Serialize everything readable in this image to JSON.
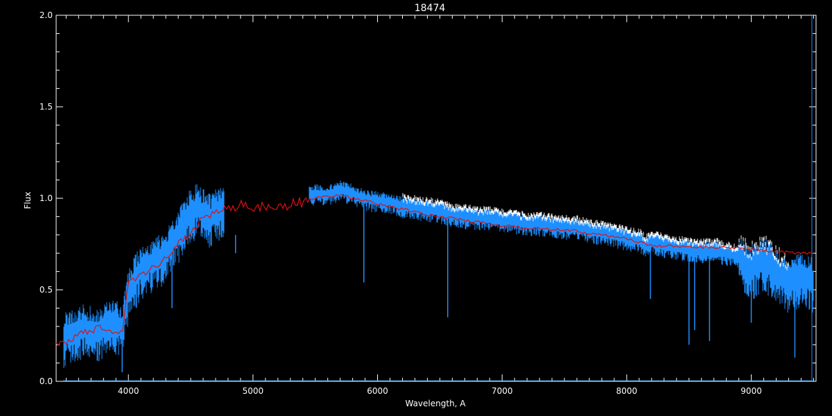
{
  "chart_data": {
    "type": "line",
    "title": "18474",
    "xlabel": "Wavelength, A",
    "ylabel": "Flux",
    "xlim": [
      3420,
      9520
    ],
    "ylim": [
      0.0,
      2.0
    ],
    "x_ticks": [
      4000,
      5000,
      6000,
      7000,
      8000,
      9000
    ],
    "x_tick_labels": [
      "4000",
      "5000",
      "6000",
      "7000",
      "8000",
      "9000"
    ],
    "y_ticks": [
      0.0,
      0.5,
      1.0,
      1.5,
      2.0
    ],
    "y_tick_labels": [
      "0.0",
      "0.5",
      "1.0",
      "1.5",
      "2.0"
    ],
    "grid": false,
    "legend": "none",
    "colors": {
      "background": "#000000",
      "axes": "#ffffff",
      "observed": "#1e8fff",
      "observed_upper": "#ffffff",
      "model": "#dd1111"
    },
    "series": [
      {
        "key": "observed",
        "x": [
          3480,
          3550,
          3650,
          3750,
          3850,
          3950,
          4000,
          4100,
          4200,
          4300,
          4400,
          4500,
          4550,
          4650,
          4750,
          4770
        ],
        "y": [
          0.25,
          0.28,
          0.3,
          0.27,
          0.33,
          0.3,
          0.5,
          0.62,
          0.66,
          0.7,
          0.82,
          0.93,
          0.96,
          0.9,
          0.95,
          0.95
        ]
      },
      {
        "key": "observed",
        "x": [
          5450,
          5500,
          5600,
          5700,
          5800,
          5900,
          6000,
          6100,
          6200,
          6300,
          6400,
          6500,
          6600,
          6700,
          6800,
          6900,
          7000,
          7100,
          7200,
          7300,
          7400,
          7500,
          7600,
          7700,
          7800,
          7900,
          8000,
          8100,
          8150,
          8200,
          8300,
          8400,
          8500,
          8600,
          8700,
          8800,
          8900,
          9000,
          9100,
          9200,
          9300,
          9400,
          9500
        ],
        "y": [
          1.02,
          1.03,
          1.02,
          1.05,
          1.03,
          1.0,
          0.99,
          0.98,
          0.96,
          0.95,
          0.94,
          0.93,
          0.91,
          0.9,
          0.89,
          0.89,
          0.88,
          0.87,
          0.86,
          0.86,
          0.85,
          0.84,
          0.84,
          0.82,
          0.81,
          0.8,
          0.78,
          0.77,
          0.74,
          0.76,
          0.74,
          0.73,
          0.72,
          0.71,
          0.72,
          0.7,
          0.68,
          0.62,
          0.67,
          0.6,
          0.55,
          0.58,
          0.55
        ]
      },
      {
        "key": "model",
        "x": [
          3420,
          3500,
          3600,
          3700,
          3800,
          3900,
          3950,
          4000,
          4100,
          4200,
          4300,
          4400,
          4500,
          4600,
          4700,
          4800,
          4900,
          5000,
          5100,
          5200,
          5300,
          5400,
          5500,
          5600,
          5700,
          5800,
          5900,
          6000,
          6200,
          6400,
          6600,
          6800,
          7000,
          7200,
          7400,
          7600,
          7800,
          8000,
          8100,
          8200,
          8400,
          8600,
          8800,
          9000,
          9200,
          9400,
          9500
        ],
        "y": [
          0.19,
          0.22,
          0.26,
          0.28,
          0.3,
          0.27,
          0.26,
          0.55,
          0.58,
          0.62,
          0.68,
          0.75,
          0.8,
          0.9,
          0.92,
          0.95,
          0.96,
          0.94,
          0.96,
          0.95,
          0.97,
          0.98,
          1.0,
          1.01,
          1.02,
          1.0,
          0.99,
          0.97,
          0.94,
          0.91,
          0.89,
          0.87,
          0.85,
          0.84,
          0.83,
          0.82,
          0.8,
          0.78,
          0.76,
          0.74,
          0.74,
          0.73,
          0.73,
          0.72,
          0.71,
          0.7,
          0.7
        ]
      }
    ],
    "absorption_dips": [
      {
        "x": 3950,
        "y": 0.05
      },
      {
        "x": 4350,
        "y": 0.4
      },
      {
        "x": 4860,
        "y": 0.7
      },
      {
        "x": 5890,
        "y": 0.54
      },
      {
        "x": 6563,
        "y": 0.35
      },
      {
        "x": 8190,
        "y": 0.45
      },
      {
        "x": 8500,
        "y": 0.2
      },
      {
        "x": 8545,
        "y": 0.28
      },
      {
        "x": 8665,
        "y": 0.22
      },
      {
        "x": 9000,
        "y": 0.32
      },
      {
        "x": 9350,
        "y": 0.13
      }
    ]
  }
}
